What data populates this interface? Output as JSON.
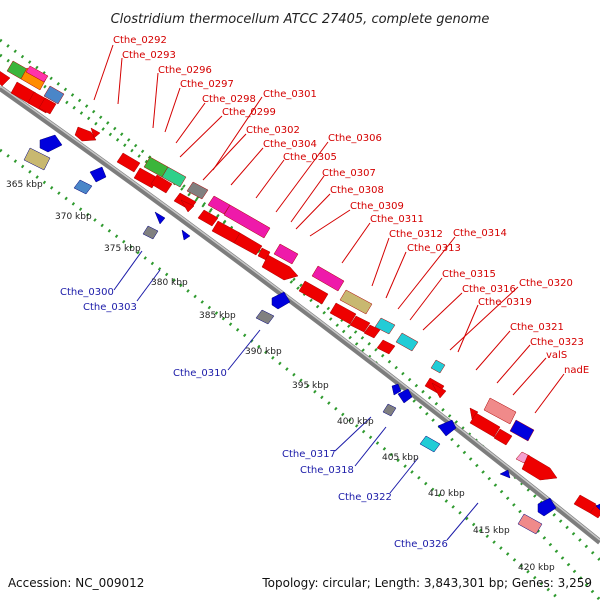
{
  "title": "Clostridium thermocellum ATCC 27405, complete genome",
  "footer": {
    "accession": "Accession: NC_009012",
    "topology": "Topology: circular; Length: 3,843,301 bp; Genes: 3,259"
  },
  "colors": {
    "forward": "#ee0000",
    "reverse": "#0000dd",
    "backbone": "#888888",
    "ticks": "#2f9a2f",
    "label_forward": "#d40000",
    "label_reverse": "#1a1aa8"
  },
  "kbp_labels": [
    "365 kbp",
    "370 kbp",
    "375 kbp",
    "380 kbp",
    "385 kbp",
    "390 kbp",
    "395 kbp",
    "400 kbp",
    "405 kbp",
    "410 kbp",
    "415 kbp",
    "420 kbp"
  ],
  "forward_labels": [
    "Cthe_0292",
    "Cthe_0293",
    "Cthe_0296",
    "Cthe_0297",
    "Cthe_0298",
    "Cthe_0299",
    "Cthe_0301",
    "Cthe_0302",
    "Cthe_0304",
    "Cthe_0305",
    "Cthe_0306",
    "Cthe_0307",
    "Cthe_0308",
    "Cthe_0309",
    "Cthe_0311",
    "Cthe_0312",
    "Cthe_0313",
    "Cthe_0314",
    "Cthe_0315",
    "Cthe_0316",
    "Cthe_0319",
    "Cthe_0320",
    "Cthe_0321",
    "Cthe_0323",
    "valS",
    "nadE"
  ],
  "reverse_labels": [
    "Cthe_0300",
    "Cthe_0303",
    "Cthe_0310",
    "Cthe_0317",
    "Cthe_0318",
    "Cthe_0322",
    "Cthe_0326"
  ]
}
